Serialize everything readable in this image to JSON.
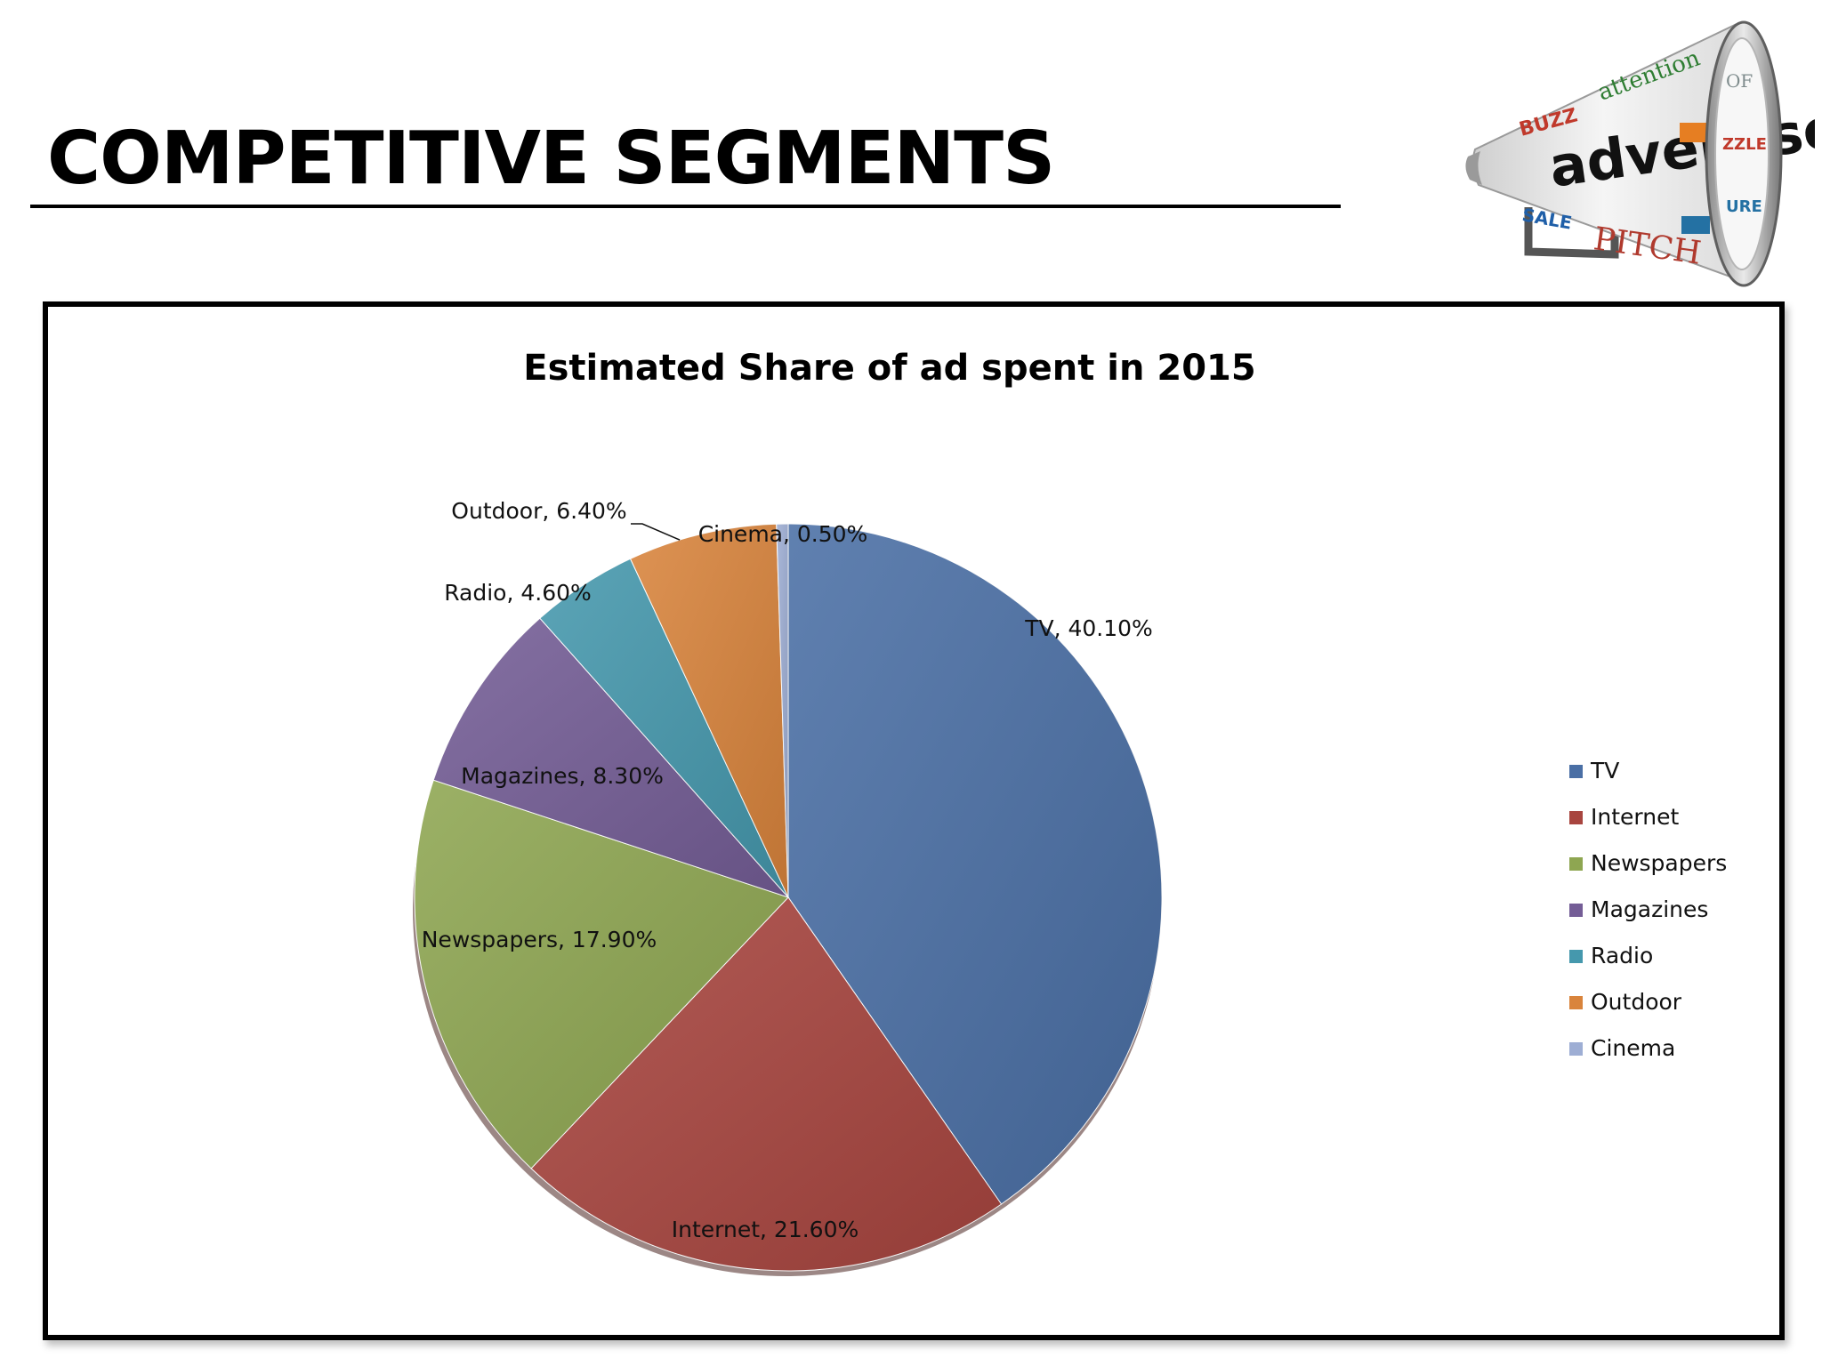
{
  "slide": {
    "title": "COMPETITIVE SEGMENTS",
    "logo_text": "advertise!"
  },
  "chart_data": {
    "type": "pie",
    "title": "Estimated Share of ad spent in 2015",
    "categories": [
      "TV",
      "Internet",
      "Newspapers",
      "Magazines",
      "Radio",
      "Outdoor",
      "Cinema"
    ],
    "values": [
      40.1,
      21.6,
      17.9,
      8.3,
      4.6,
      6.4,
      0.5
    ],
    "data_labels": [
      "TV, 40.10%",
      "Internet, 21.60%",
      "Newspapers, 17.90%",
      "Magazines, 8.30%",
      "Radio, 4.60%",
      "Outdoor, 6.40%",
      "Cinema, 0.50%"
    ],
    "colors": [
      "#4a6fa5",
      "#a8453f",
      "#8ea651",
      "#745d96",
      "#4598ad",
      "#d9843c",
      "#9eaed4"
    ],
    "legend_position": "right",
    "start_angle": "12 o'clock, clockwise"
  }
}
